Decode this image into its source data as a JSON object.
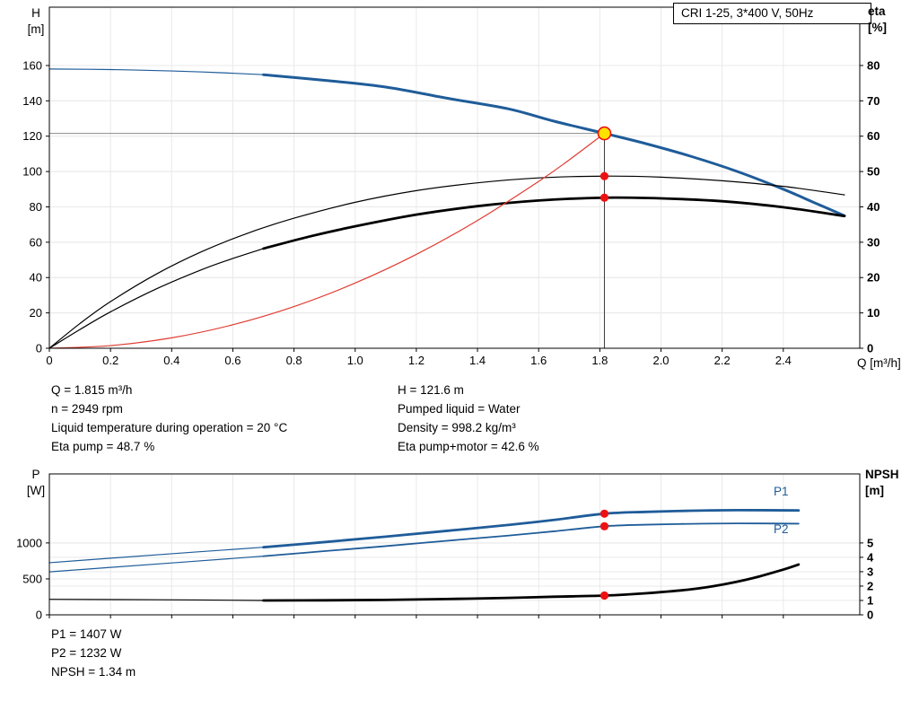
{
  "colors": {
    "curve_blue": "#1f5c99",
    "curve_black": "#000000",
    "curve_red": "#e03c32",
    "dot_red": "#ee1111",
    "duty_fill": "#ffe100",
    "ref_gray": "#8a8a8a",
    "ref_dark": "#3c3c3c",
    "grid": "#e9e9e9"
  },
  "chart_data": [
    {
      "type": "line",
      "title": "CRI 1-25, 3*400 V, 50Hz",
      "x_axis": {
        "label": "Q [m³/h]",
        "min": 0,
        "max": 2.65,
        "ticks": [
          0,
          0.2,
          0.4,
          0.6,
          0.8,
          1.0,
          1.2,
          1.4,
          1.6,
          1.8,
          2.0,
          2.2,
          2.4
        ],
        "tick_labels": [
          "0",
          "0.2",
          "0.4",
          "0.6",
          "0.8",
          "1.0",
          "1.2",
          "1.4",
          "1.6",
          "1.8",
          "2.0",
          "2.2",
          "2.4"
        ]
      },
      "y_left": {
        "label_lines": [
          "H",
          "[m]"
        ],
        "min": 0,
        "max": 193,
        "ticks": [
          0,
          20,
          40,
          60,
          80,
          100,
          120,
          140,
          160
        ]
      },
      "y_right": {
        "label_lines": [
          "eta",
          "[%]"
        ],
        "min": 0,
        "max": 96.5,
        "ticks": [
          0,
          10,
          20,
          30,
          40,
          50,
          60,
          70,
          80
        ]
      },
      "duty_point": {
        "q": 1.815,
        "h": 121.6,
        "eta_pump": 48.7,
        "eta_pump_motor": 42.6
      },
      "ref_lines": {
        "h": 121.6,
        "v": 1.815
      },
      "series": [
        {
          "name": "qh-lead",
          "axis": "left",
          "color": "#1f5c99",
          "width": 1.2,
          "points": [
            [
              0,
              158
            ],
            [
              0.2,
              157.7
            ],
            [
              0.4,
              156.9
            ],
            [
              0.55,
              156
            ],
            [
              0.7,
              154.8
            ]
          ]
        },
        {
          "name": "qh",
          "axis": "left",
          "color": "#1f5c99",
          "width": 3,
          "points": [
            [
              0.7,
              154.8
            ],
            [
              0.9,
              151.6
            ],
            [
              1.1,
              147.8
            ],
            [
              1.3,
              141.5
            ],
            [
              1.5,
              135.5
            ],
            [
              1.65,
              128.5
            ],
            [
              1.815,
              121.6
            ],
            [
              1.95,
              115.8
            ],
            [
              2.1,
              108.5
            ],
            [
              2.25,
              100
            ],
            [
              2.4,
              90
            ],
            [
              2.5,
              82.5
            ],
            [
              2.6,
              75
            ]
          ]
        },
        {
          "name": "eta-pump",
          "axis": "right",
          "color": "#000000",
          "width": 1.2,
          "points": [
            [
              0,
              0
            ],
            [
              0.1,
              7
            ],
            [
              0.2,
              13.2
            ],
            [
              0.35,
              21
            ],
            [
              0.5,
              27.4
            ],
            [
              0.65,
              32.6
            ],
            [
              0.8,
              36.8
            ],
            [
              1.0,
              41.3
            ],
            [
              1.2,
              44.6
            ],
            [
              1.4,
              46.8
            ],
            [
              1.6,
              48.2
            ],
            [
              1.815,
              48.7
            ],
            [
              2.0,
              48.4
            ],
            [
              2.2,
              47.4
            ],
            [
              2.4,
              45.8
            ],
            [
              2.6,
              43.4
            ]
          ]
        },
        {
          "name": "eta-pump-motor-lead",
          "axis": "right",
          "color": "#000000",
          "width": 1.2,
          "points": [
            [
              0,
              0
            ],
            [
              0.1,
              5.3
            ],
            [
              0.2,
              10.3
            ],
            [
              0.35,
              16.8
            ],
            [
              0.5,
              22.3
            ],
            [
              0.6,
              25.4
            ],
            [
              0.7,
              28.2
            ]
          ]
        },
        {
          "name": "eta-pump-motor",
          "axis": "right",
          "color": "#000000",
          "width": 2.8,
          "points": [
            [
              0.7,
              28.2
            ],
            [
              0.85,
              31.6
            ],
            [
              1.0,
              34.5
            ],
            [
              1.2,
              37.8
            ],
            [
              1.4,
              40.2
            ],
            [
              1.6,
              41.8
            ],
            [
              1.815,
              42.6
            ],
            [
              2.0,
              42.4
            ],
            [
              2.2,
              41.6
            ],
            [
              2.4,
              39.9
            ],
            [
              2.6,
              37.4
            ]
          ]
        },
        {
          "name": "affinity-parabola",
          "axis": "left",
          "color": "#e03c32",
          "width": 1.2,
          "points": [
            [
              0,
              0
            ],
            [
              0.2,
              1.5
            ],
            [
              0.4,
              5.9
            ],
            [
              0.6,
              13.3
            ],
            [
              0.8,
              23.6
            ],
            [
              1.0,
              36.9
            ],
            [
              1.2,
              53.1
            ],
            [
              1.4,
              72.3
            ],
            [
              1.6,
              94.4
            ],
            [
              1.7,
              106.6
            ],
            [
              1.815,
              121.6
            ]
          ]
        }
      ],
      "markers": [
        {
          "x": 1.815,
          "y": 121.6,
          "axis": "left",
          "style": "duty"
        },
        {
          "x": 1.815,
          "y": 48.7,
          "axis": "right",
          "style": "dot"
        },
        {
          "x": 1.815,
          "y": 42.6,
          "axis": "right",
          "style": "dot"
        }
      ]
    },
    {
      "type": "line",
      "x_axis": {
        "label": "",
        "min": 0,
        "max": 2.65,
        "ticks": [
          0,
          0.2,
          0.4,
          0.6,
          0.8,
          1.0,
          1.2,
          1.4,
          1.6,
          1.8,
          2.0,
          2.2,
          2.4
        ],
        "tick_labels": []
      },
      "y_left": {
        "label_lines": [
          "P",
          "[W]"
        ],
        "min": 0,
        "max": 1960,
        "ticks": [
          0,
          500,
          1000
        ]
      },
      "y_right": {
        "label_lines": [
          "NPSH",
          "[m]"
        ],
        "min": 0,
        "max": 9.8,
        "ticks": [
          0,
          1,
          2,
          3,
          4,
          5
        ]
      },
      "series_labels": {
        "p1": "P1",
        "p2": "P2"
      },
      "duty_point": {
        "q": 1.815,
        "p1": 1407,
        "p2": 1232,
        "npsh": 1.34
      },
      "series": [
        {
          "name": "p1-lead",
          "axis": "left",
          "color": "#1f5c99",
          "width": 1.2,
          "points": [
            [
              0,
              725
            ],
            [
              0.2,
              788
            ],
            [
              0.4,
              850
            ],
            [
              0.6,
              910
            ],
            [
              0.7,
              940
            ]
          ]
        },
        {
          "name": "p1",
          "axis": "left",
          "color": "#1f5c99",
          "width": 2.8,
          "points": [
            [
              0.7,
              940
            ],
            [
              0.9,
              1012
            ],
            [
              1.1,
              1088
            ],
            [
              1.3,
              1168
            ],
            [
              1.5,
              1250
            ],
            [
              1.65,
              1320
            ],
            [
              1.815,
              1407
            ],
            [
              1.95,
              1432
            ],
            [
              2.1,
              1448
            ],
            [
              2.25,
              1456
            ],
            [
              2.45,
              1452
            ]
          ]
        },
        {
          "name": "p2-lead",
          "axis": "left",
          "color": "#1f5c99",
          "width": 1.2,
          "points": [
            [
              0,
              598
            ],
            [
              0.2,
              660
            ],
            [
              0.4,
              722
            ],
            [
              0.6,
              784
            ],
            [
              0.7,
              816
            ]
          ]
        },
        {
          "name": "p2",
          "axis": "left",
          "color": "#1f5c99",
          "width": 1.8,
          "points": [
            [
              0.7,
              816
            ],
            [
              0.9,
              886
            ],
            [
              1.1,
              956
            ],
            [
              1.3,
              1030
            ],
            [
              1.5,
              1102
            ],
            [
              1.65,
              1162
            ],
            [
              1.815,
              1232
            ],
            [
              1.95,
              1254
            ],
            [
              2.1,
              1266
            ],
            [
              2.25,
              1272
            ],
            [
              2.45,
              1268
            ]
          ]
        },
        {
          "name": "npsh-lead",
          "axis": "right",
          "color": "#000000",
          "width": 1.2,
          "points": [
            [
              0,
              1.08
            ],
            [
              0.35,
              1.05
            ],
            [
              0.7,
              1.0
            ]
          ]
        },
        {
          "name": "npsh",
          "axis": "right",
          "color": "#000000",
          "width": 2.8,
          "points": [
            [
              0.7,
              1.0
            ],
            [
              0.9,
              1.01
            ],
            [
              1.1,
              1.04
            ],
            [
              1.3,
              1.1
            ],
            [
              1.5,
              1.18
            ],
            [
              1.65,
              1.26
            ],
            [
              1.815,
              1.34
            ],
            [
              1.95,
              1.5
            ],
            [
              2.1,
              1.78
            ],
            [
              2.2,
              2.1
            ],
            [
              2.3,
              2.55
            ],
            [
              2.4,
              3.15
            ],
            [
              2.45,
              3.5
            ]
          ]
        }
      ],
      "markers": [
        {
          "x": 1.815,
          "y": 1407,
          "axis": "left",
          "style": "dot"
        },
        {
          "x": 1.815,
          "y": 1232,
          "axis": "left",
          "style": "dot"
        },
        {
          "x": 1.815,
          "y": 1.34,
          "axis": "right",
          "style": "dot"
        }
      ]
    }
  ],
  "mid_text": {
    "left": [
      "Q = 1.815 m³/h",
      "n = 2949 rpm",
      "Liquid temperature during operation = 20 °C",
      "Eta pump = 48.7 %"
    ],
    "right": [
      "H = 121.6 m",
      "Pumped liquid = Water",
      "Density = 998.2 kg/m³",
      "Eta pump+motor = 42.6 %"
    ]
  },
  "bottom_text": [
    "P1 = 1407 W",
    "P2 = 1232 W",
    "NPSH = 1.34 m"
  ]
}
